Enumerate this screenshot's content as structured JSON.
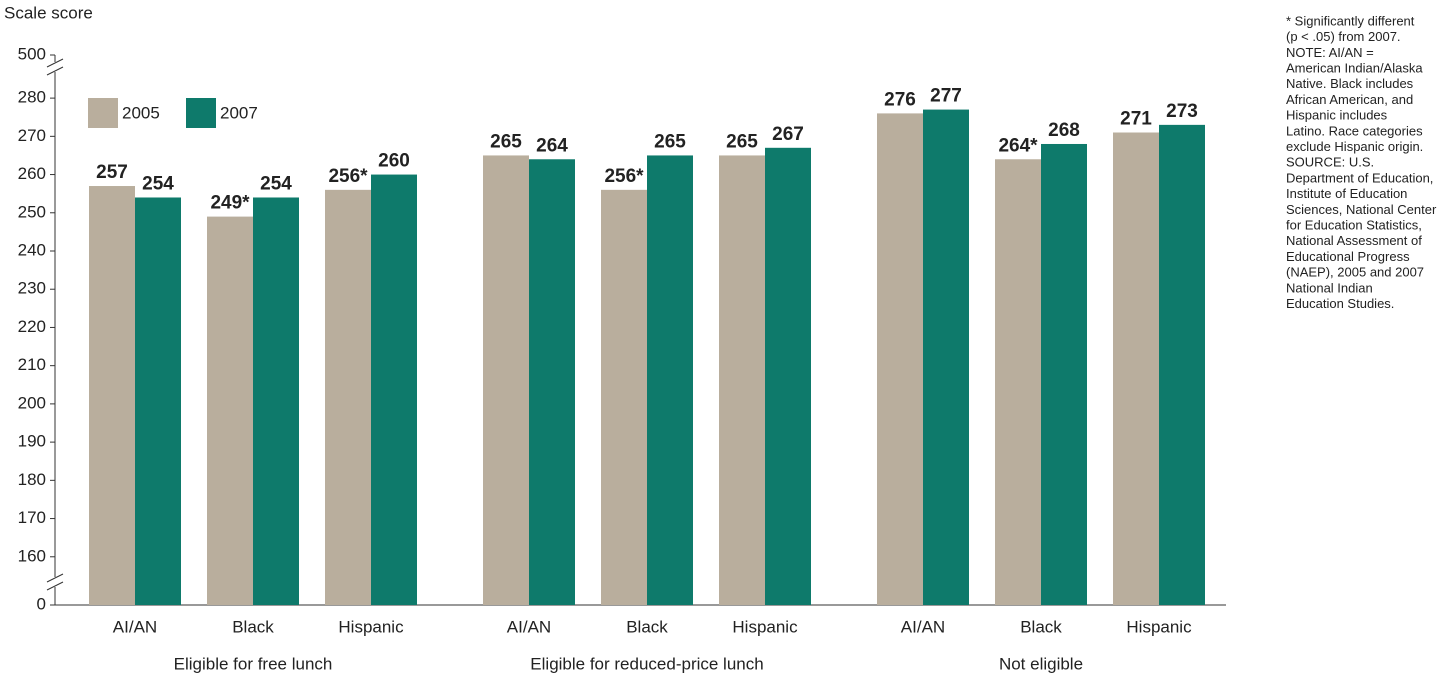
{
  "chart_data": {
    "type": "bar",
    "y_label": "Scale score",
    "categories": [
      "AI/AN",
      "Black",
      "Hispanic",
      "AI/AN",
      "Black",
      "Hispanic",
      "AI/AN",
      "Black",
      "Hispanic"
    ],
    "groups": [
      "Eligible for free lunch",
      "Eligible for reduced-price lunch",
      "Not eligible"
    ],
    "series": [
      {
        "name": "2005",
        "color": "#b9ae9d",
        "values": [
          257,
          249,
          256,
          265,
          256,
          265,
          276,
          264,
          271
        ],
        "value_labels": [
          "257",
          "249*",
          "256*",
          "265",
          "256*",
          "265",
          "276",
          "264*",
          "271"
        ]
      },
      {
        "name": "2007",
        "color": "#0e7a6b",
        "values": [
          254,
          254,
          260,
          264,
          265,
          267,
          277,
          268,
          273
        ]
      }
    ],
    "ylim": [
      0,
      500
    ],
    "axis_breaks": [
      [
        0,
        150
      ],
      [
        285,
        500
      ]
    ],
    "yticks": [
      0,
      160,
      170,
      180,
      190,
      200,
      210,
      220,
      230,
      240,
      250,
      260,
      270,
      280,
      500
    ],
    "notes": [
      "* Significantly different",
      "(p < .05) from 2007.",
      "NOTE: AI/AN =",
      "American Indian/Alaska",
      "Native. Black includes",
      "African American, and",
      "Hispanic includes",
      "Latino. Race categories",
      "exclude Hispanic origin.",
      "SOURCE: U.S.",
      "Department of Education,",
      "Institute of Education",
      "Sciences, National Center",
      "for Education Statistics,",
      "National Assessment of",
      "Educational Progress",
      "(NAEP), 2005 and 2007",
      "National Indian",
      "Education Studies."
    ]
  }
}
